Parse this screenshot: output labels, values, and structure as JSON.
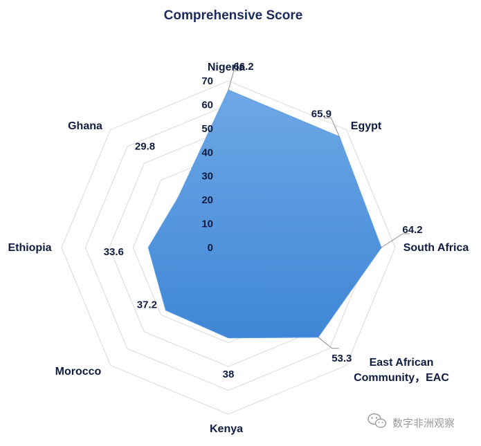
{
  "chart_data": {
    "type": "radar",
    "title": "Comprehensive Score",
    "categories": [
      "Nigeria",
      "Egypt",
      "South Africa",
      "East African Community，EAC",
      "Kenya",
      "Morocco",
      "Ethiopia",
      "Ghana"
    ],
    "values": [
      66.2,
      65.9,
      64.2,
      53.3,
      38,
      37.2,
      33.6,
      29.8
    ],
    "radial_ticks": [
      0,
      10,
      20,
      30,
      40,
      50,
      60,
      70
    ],
    "rlim": [
      0,
      70
    ],
    "area_color": "#4a90dc",
    "grid_color": "#d9d9d9"
  },
  "watermark": {
    "text": "数字非洲观察",
    "icon": "wechat-icon"
  }
}
